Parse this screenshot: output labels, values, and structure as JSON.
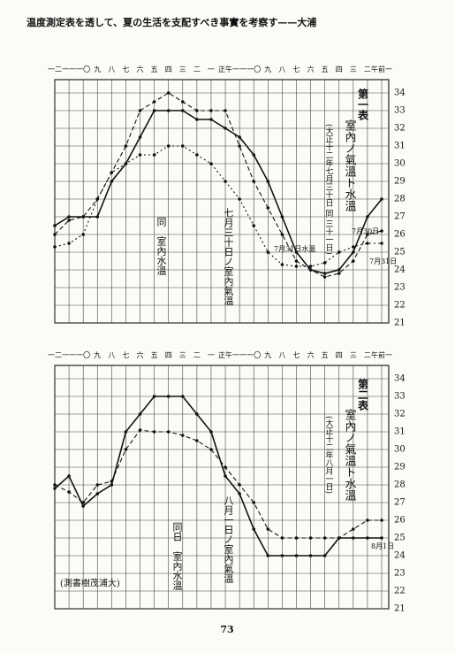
{
  "header": {
    "title": "温度測定表を透して、夏の生活を支配すべき事實を考察す——大浦"
  },
  "footer": {
    "page_number": "73",
    "note": "(測書樹茂浦大)"
  },
  "chart_data": [
    {
      "type": "line",
      "title": "第一表",
      "subtitle": "室內ノ氣溫ト水溫",
      "date_note": "(大正十二年七月三十日 同 三十一日)",
      "categories": [
        "一二",
        "一一",
        "一〇",
        "九",
        "八",
        "七",
        "六",
        "五",
        "四",
        "三",
        "二",
        "一",
        "正午",
        "一一",
        "一〇",
        "九",
        "八",
        "七",
        "六",
        "五",
        "四",
        "三",
        "二",
        "午前一"
      ],
      "series": [
        {
          "name": "七月三十日ノ室內氣溫",
          "color": "#111111",
          "style": "solid",
          "values": [
            26.5,
            27,
            27,
            27,
            29,
            30,
            31.5,
            33,
            33,
            33,
            32.5,
            32.5,
            32,
            31.5,
            30.5,
            29,
            27,
            25,
            24,
            23.8,
            24,
            25,
            27,
            28
          ]
        },
        {
          "name": "同　室內水溫",
          "color": "#111111",
          "style": "dashed",
          "values": [
            26,
            26.8,
            27,
            28,
            29.5,
            31,
            33,
            33.5,
            34,
            33.5,
            33,
            33,
            33,
            31,
            29,
            27.5,
            26,
            24.5,
            24,
            23.6,
            23.8,
            24.5,
            26,
            26.2
          ]
        },
        {
          "name": "7月31日水溫",
          "color": "#111111",
          "style": "dotted",
          "values": [
            25.3,
            25.5,
            26,
            28,
            29.5,
            30,
            30.5,
            30.5,
            31,
            31,
            30.5,
            30,
            29,
            28,
            26.5,
            25,
            24.3,
            24.2,
            24.2,
            24.4,
            25,
            25.3,
            25.5,
            25.5
          ]
        }
      ],
      "annotations": [
        "7月30日",
        "7月31日"
      ],
      "ylim": [
        21,
        34.5
      ],
      "yticks": [
        21,
        22,
        23,
        24,
        25,
        26,
        27,
        28,
        29,
        30,
        31,
        32,
        33,
        34
      ],
      "grid": true
    },
    {
      "type": "line",
      "title": "第二表",
      "subtitle": "室內ノ氣溫ト水溫",
      "date_note": "(大正十二年八月一日)",
      "categories": [
        "一二",
        "一一",
        "一〇",
        "九",
        "八",
        "七",
        "六",
        "五",
        "四",
        "三",
        "二",
        "一",
        "正午",
        "一一",
        "一〇",
        "九",
        "八",
        "七",
        "六",
        "五",
        "四",
        "三",
        "二",
        "午前一"
      ],
      "series": [
        {
          "name": "八月一日ノ室內氣溫",
          "color": "#111111",
          "style": "solid",
          "values": [
            27.8,
            28.5,
            26.8,
            27.5,
            28,
            31,
            32,
            33,
            33,
            33,
            32,
            31,
            28.5,
            27.5,
            25.5,
            24,
            24,
            24,
            24,
            24,
            25,
            25,
            25,
            25
          ]
        },
        {
          "name": "同日　室內水溫",
          "color": "#111111",
          "style": "dashed",
          "values": [
            28,
            27.6,
            27,
            28,
            28.2,
            30,
            31.1,
            31,
            31,
            30.8,
            30.5,
            30,
            29,
            28,
            27,
            25.5,
            25,
            25,
            25,
            25,
            25,
            25.5,
            26,
            26
          ]
        }
      ],
      "annotations": [
        "8月1日"
      ],
      "ylim": [
        21,
        34.5
      ],
      "yticks": [
        21,
        22,
        23,
        24,
        25,
        26,
        27,
        28,
        29,
        30,
        31,
        32,
        33,
        34
      ],
      "grid": true
    }
  ]
}
